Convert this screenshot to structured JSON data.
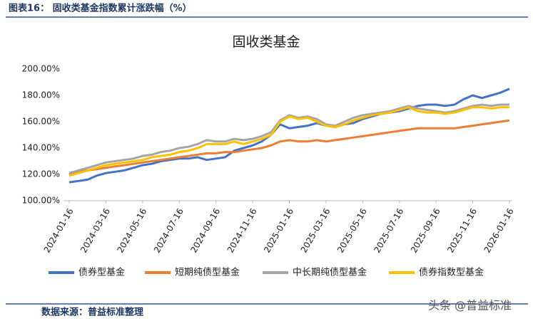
{
  "header": "图表16：  固收类基金指数累计涨跌幅（%）",
  "source": "数据来源：普益标准整理",
  "watermark": "头条 @普益标准",
  "chart_data": {
    "type": "line",
    "title": "固收类基金",
    "categories": [
      "2024-01-16",
      null,
      null,
      null,
      "2024-03-16",
      null,
      null,
      null,
      "2024-05-16",
      null,
      null,
      null,
      "2024-07-16",
      null,
      null,
      null,
      "2024-09-16",
      null,
      null,
      null,
      "2024-11-16",
      null,
      null,
      null,
      "2025-01-16",
      null,
      null,
      null,
      "2025-03-16",
      null,
      null,
      null,
      "2025-05-16",
      null,
      null,
      null,
      "2025-07-16",
      null,
      null,
      null,
      "2025-09-16",
      null,
      null,
      null,
      "2025-11-16",
      null,
      null,
      null,
      "2026-01-16"
    ],
    "ylim": [
      100,
      200
    ],
    "yticks": [
      {
        "value": 100,
        "label": "100.00%"
      },
      {
        "value": 120,
        "label": "120.00%"
      },
      {
        "value": 140,
        "label": "140.00%"
      },
      {
        "value": 160,
        "label": "160.00%"
      },
      {
        "value": 180,
        "label": "180.00%"
      },
      {
        "value": 200,
        "label": "200.00%"
      }
    ],
    "grid": false,
    "legend": "bottom",
    "series": [
      {
        "name": "债券型基金",
        "color": "#4472c4",
        "values": [
          114,
          115,
          116,
          119,
          121,
          122,
          123,
          125,
          127,
          128,
          130,
          131,
          132,
          132,
          133,
          131,
          132,
          133,
          138,
          140,
          142,
          145,
          150,
          158,
          155,
          156,
          157,
          159,
          157,
          156,
          158,
          159,
          162,
          164,
          166,
          167,
          168,
          170,
          172,
          173,
          173,
          172,
          173,
          177,
          180,
          178,
          180,
          182,
          185
        ]
      },
      {
        "name": "短期纯债型基金",
        "color": "#ed7d31",
        "values": [
          120,
          122,
          123,
          124,
          125,
          126,
          127,
          128,
          129,
          130,
          131,
          132,
          133,
          134,
          135,
          136,
          136,
          137,
          137,
          138,
          139,
          140,
          142,
          145,
          146,
          145,
          145,
          146,
          145,
          146,
          147,
          148,
          149,
          150,
          151,
          152,
          153,
          154,
          155,
          155,
          155,
          155,
          155,
          156,
          157,
          158,
          159,
          160,
          161
        ]
      },
      {
        "name": "中长期纯债型基金",
        "color": "#a5a5a5",
        "values": [
          121,
          123,
          125,
          127,
          129,
          130,
          131,
          132,
          134,
          135,
          137,
          138,
          140,
          141,
          143,
          146,
          145,
          145,
          147,
          146,
          147,
          149,
          152,
          161,
          165,
          163,
          164,
          162,
          158,
          157,
          160,
          163,
          165,
          166,
          167,
          168,
          170,
          172,
          170,
          169,
          168,
          167,
          168,
          170,
          172,
          173,
          172,
          173,
          173
        ]
      },
      {
        "name": "债券指数型基金",
        "color": "#ffc000",
        "values": [
          119,
          121,
          123,
          125,
          127,
          128,
          129,
          130,
          131,
          133,
          134,
          135,
          137,
          138,
          140,
          143,
          143,
          143,
          145,
          143,
          145,
          147,
          150,
          160,
          164,
          162,
          163,
          160,
          157,
          156,
          158,
          161,
          163,
          165,
          166,
          167,
          169,
          171,
          168,
          167,
          167,
          166,
          167,
          169,
          171,
          171,
          170,
          171,
          171
        ]
      }
    ]
  }
}
